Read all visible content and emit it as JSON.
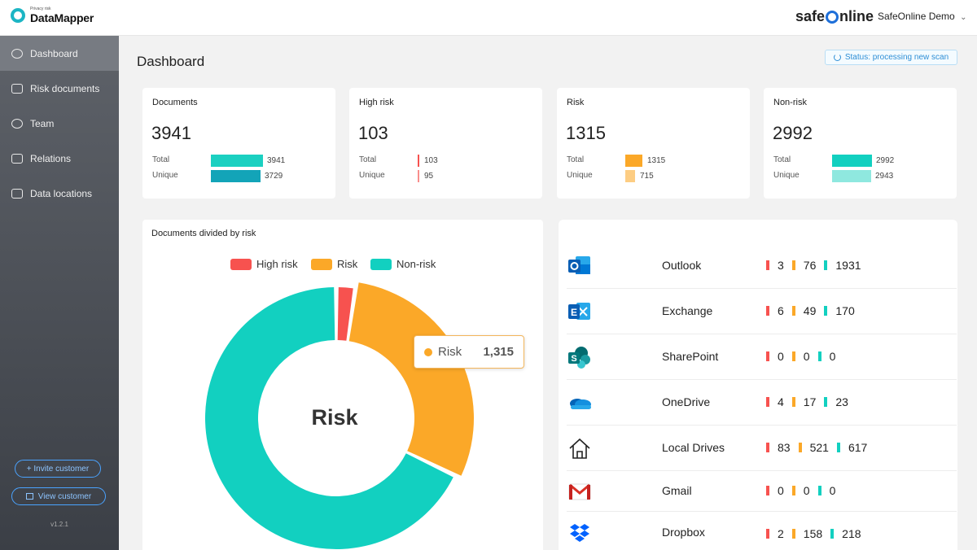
{
  "app": {
    "logo_small": "Privacy risk",
    "logo_name": "DataMapper",
    "brand_left": "safe",
    "brand_right": "nline",
    "customer": "SafeOnline Demo",
    "customer_chevron": "⌄"
  },
  "sidebar": {
    "items": [
      {
        "label": "Dashboard",
        "icon": "gauge-icon",
        "active": true
      },
      {
        "label": "Risk documents",
        "icon": "risk-documents-icon",
        "active": false
      },
      {
        "label": "Team",
        "icon": "team-icon",
        "active": false
      },
      {
        "label": "Relations",
        "icon": "relations-icon",
        "active": false
      },
      {
        "label": "Data locations",
        "icon": "folder-icon",
        "active": false
      }
    ],
    "invite_label": "+ Invite customer",
    "view_label": "View customer",
    "version": "v1.2.1"
  },
  "main": {
    "title": "Dashboard",
    "status": "Status: processing new scan"
  },
  "cards": [
    {
      "label": "Documents",
      "value": "3941",
      "total_label": "Total",
      "unique_label": "Unique",
      "total": "3941",
      "unique": "3729"
    },
    {
      "label": "High risk",
      "value": "103",
      "total_label": "Total",
      "unique_label": "Unique",
      "total": "103",
      "unique": "95"
    },
    {
      "label": "Risk",
      "value": "1315",
      "total_label": "Total",
      "unique_label": "Unique",
      "total": "1315",
      "unique": "715"
    },
    {
      "label": "Non-risk",
      "value": "2992",
      "total_label": "Total",
      "unique_label": "Unique",
      "total": "2992",
      "unique": "2943"
    }
  ],
  "colors": {
    "high_risk": "#f7524f",
    "risk": "#fba828",
    "non_risk": "#12d0c0",
    "accent": "#1cb5c4"
  },
  "chart_data": {
    "type": "pie",
    "title": "Documents divided by risk",
    "categories": [
      "High risk",
      "Risk",
      "Non-risk"
    ],
    "values": [
      103,
      1315,
      2992
    ],
    "colors": [
      "#f7524f",
      "#fba828",
      "#12d0c0"
    ],
    "legend": "top",
    "center_label": "Risk",
    "tooltip": {
      "label": "Risk",
      "value": "1,315"
    }
  },
  "sources": [
    {
      "name": "Outlook",
      "icon": "outlook-icon",
      "high": "3",
      "risk": "76",
      "non": "1931"
    },
    {
      "name": "Exchange",
      "icon": "exchange-icon",
      "high": "6",
      "risk": "49",
      "non": "170"
    },
    {
      "name": "SharePoint",
      "icon": "sharepoint-icon",
      "high": "0",
      "risk": "0",
      "non": "0"
    },
    {
      "name": "OneDrive",
      "icon": "onedrive-icon",
      "high": "4",
      "risk": "17",
      "non": "23"
    },
    {
      "name": "Local Drives",
      "icon": "house-icon",
      "high": "83",
      "risk": "521",
      "non": "617"
    },
    {
      "name": "Gmail",
      "icon": "gmail-icon",
      "high": "0",
      "risk": "0",
      "non": "0"
    },
    {
      "name": "Dropbox",
      "icon": "dropbox-icon",
      "high": "2",
      "risk": "158",
      "non": "218"
    }
  ]
}
